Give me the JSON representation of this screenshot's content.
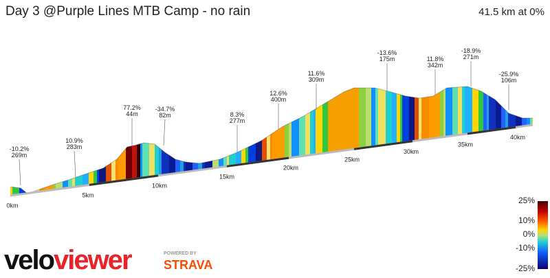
{
  "header": {
    "title": "Day 3 @Purple Lines MTB Camp - no rain",
    "summary": "41.5 km at 0%"
  },
  "annotations": [
    {
      "grade": "-10.2%",
      "length": "269m"
    },
    {
      "grade": "10.9%",
      "length": "283m"
    },
    {
      "grade": "77.2%",
      "length": "44m"
    },
    {
      "grade": "-34.7%",
      "length": "82m"
    },
    {
      "grade": "8.3%",
      "length": "277m"
    },
    {
      "grade": "12.6%",
      "length": "400m"
    },
    {
      "grade": "11.6%",
      "length": "309m"
    },
    {
      "grade": "-13.6%",
      "length": "175m"
    },
    {
      "grade": "11.8%",
      "length": "342m"
    },
    {
      "grade": "-18.9%",
      "length": "271m"
    },
    {
      "grade": "-25.9%",
      "length": "106m"
    }
  ],
  "distance_labels": [
    "0km",
    "5km",
    "10km",
    "15km",
    "20km",
    "25km",
    "30km",
    "35km",
    "40km"
  ],
  "legend": [
    "25%",
    "10%",
    "0%",
    "-10%",
    "-25%"
  ],
  "logo": {
    "velo": "velo",
    "viewer": "viewer",
    "powered": "POWERED BY",
    "strava": "STRAVA"
  }
}
